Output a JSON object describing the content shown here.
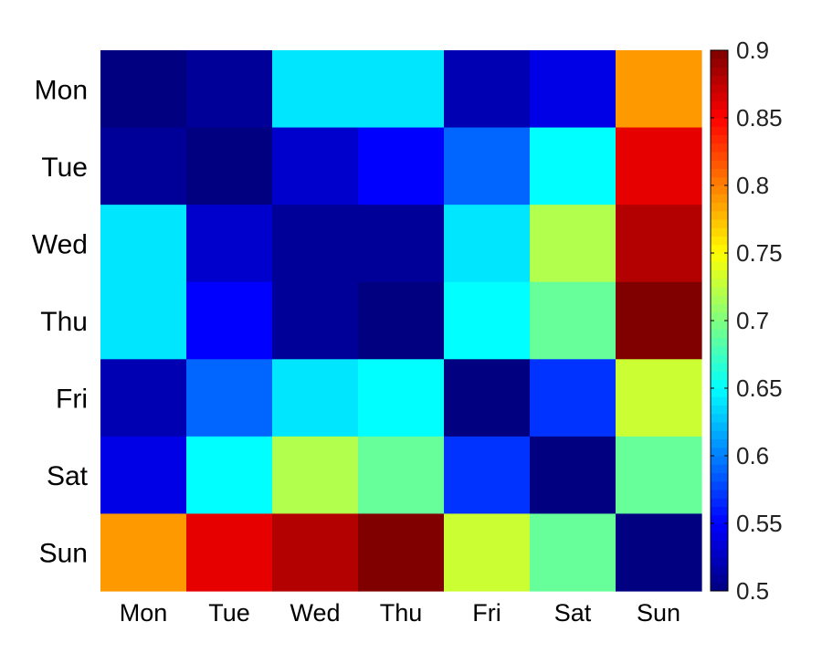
{
  "chart_data": {
    "type": "heatmap",
    "title": "",
    "xlabel": "",
    "ylabel": "",
    "categories_x": [
      "Mon",
      "Tue",
      "Wed",
      "Thu",
      "Fri",
      "Sat",
      "Sun"
    ],
    "categories_y": [
      "Mon",
      "Tue",
      "Wed",
      "Thu",
      "Fri",
      "Sat",
      "Sun"
    ],
    "values": [
      [
        0.5,
        0.51,
        0.64,
        0.64,
        0.52,
        0.54,
        0.79
      ],
      [
        0.51,
        0.5,
        0.53,
        0.55,
        0.59,
        0.65,
        0.86
      ],
      [
        0.64,
        0.53,
        0.51,
        0.51,
        0.64,
        0.72,
        0.88
      ],
      [
        0.64,
        0.55,
        0.51,
        0.5,
        0.65,
        0.69,
        0.9
      ],
      [
        0.52,
        0.59,
        0.64,
        0.65,
        0.5,
        0.57,
        0.73
      ],
      [
        0.54,
        0.65,
        0.72,
        0.69,
        0.57,
        0.5,
        0.69
      ],
      [
        0.79,
        0.86,
        0.88,
        0.9,
        0.73,
        0.69,
        0.5
      ]
    ],
    "colorbar": {
      "colormap": "jet",
      "min": 0.5,
      "max": 0.9,
      "ticks": [
        "0.5",
        "0.55",
        "0.6",
        "0.65",
        "0.7",
        "0.75",
        "0.8",
        "0.85",
        "0.9"
      ]
    },
    "grid": false,
    "legend": "none"
  }
}
